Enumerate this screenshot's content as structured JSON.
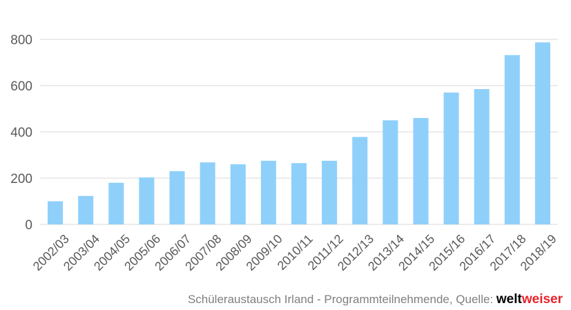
{
  "chart_data": {
    "type": "bar",
    "categories": [
      "2002/03",
      "2003/04",
      "2004/05",
      "2005/06",
      "2006/07",
      "2007/08",
      "2008/09",
      "2009/10",
      "2010/11",
      "2011/12",
      "2012/13",
      "2013/14",
      "2014/15",
      "2015/16",
      "2016/17",
      "2017/18",
      "2018/19"
    ],
    "values": [
      100,
      123,
      180,
      203,
      230,
      268,
      260,
      275,
      265,
      275,
      378,
      450,
      460,
      570,
      585,
      732,
      787
    ],
    "ylim": [
      0,
      800
    ],
    "yticks": [
      0,
      200,
      400,
      600,
      800
    ],
    "grid": true,
    "bar_color": "#8fd0fa"
  },
  "caption": {
    "text": "Schüleraustausch Irland - Programmteilnehmende, Quelle: ",
    "brand_part1": "welt",
    "brand_part2": "weiser",
    "brand_color": "#e8232a"
  }
}
